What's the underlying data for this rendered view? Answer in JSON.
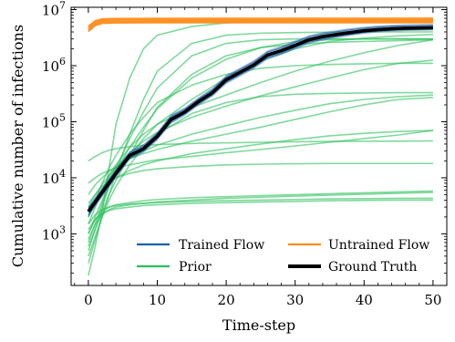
{
  "chart_data": {
    "type": "line",
    "xlabel": "Time-step",
    "ylabel": "Cumulative number of infections",
    "x_scale": "linear",
    "y_scale": "log",
    "xlim": [
      -2.5,
      52
    ],
    "ylim": [
      120,
      11000000
    ],
    "xticks": [
      {
        "value": 0,
        "label": "0"
      },
      {
        "value": 10,
        "label": "10"
      },
      {
        "value": 20,
        "label": "20"
      },
      {
        "value": 30,
        "label": "30"
      },
      {
        "value": 40,
        "label": "40"
      },
      {
        "value": 50,
        "label": "50"
      }
    ],
    "yticks": [
      {
        "value": 1000,
        "base": "10",
        "exp": "3"
      },
      {
        "value": 10000,
        "base": "10",
        "exp": "4"
      },
      {
        "value": 100000,
        "base": "10",
        "exp": "5"
      },
      {
        "value": 1000000,
        "base": "10",
        "exp": "6"
      },
      {
        "value": 10000000,
        "base": "10",
        "exp": "7"
      }
    ],
    "grid": false,
    "legend_position": "lower-right",
    "legend": [
      {
        "label": "Trained Flow",
        "color": "#1f5fa8"
      },
      {
        "label": "Untrained Flow",
        "color": "#ff8c1a"
      },
      {
        "label": "Prior",
        "color": "#2cbf5c"
      },
      {
        "label": "Ground Truth",
        "color": "#000000"
      }
    ],
    "ground_truth": {
      "x": [
        0,
        2,
        4,
        6,
        8,
        10,
        12,
        14,
        16,
        18,
        20,
        22,
        24,
        26,
        28,
        30,
        32,
        34,
        36,
        38,
        40,
        42,
        44,
        46,
        48,
        50
      ],
      "y": [
        2500,
        5500,
        12000,
        25000,
        33000,
        55000,
        110000,
        150000,
        230000,
        330000,
        560000,
        760000,
        1030000,
        1550000,
        1850000,
        2300000,
        2900000,
        3300000,
        3600000,
        3900000,
        4200000,
        4400000,
        4550000,
        4650000,
        4700000,
        4750000
      ]
    },
    "trained_flow": {
      "x": [
        0,
        2,
        4,
        6,
        8,
        10,
        12,
        14,
        16,
        18,
        20,
        22,
        24,
        26,
        28,
        30,
        32,
        34,
        36,
        38,
        40,
        42,
        44,
        46,
        48,
        50
      ],
      "lower": [
        2000,
        4500,
        10000,
        21000,
        28000,
        46000,
        92000,
        128000,
        195000,
        280000,
        470000,
        640000,
        870000,
        1300000,
        1550000,
        1950000,
        2450000,
        2800000,
        3100000,
        3400000,
        3700000,
        3900000,
        4050000,
        4150000,
        4200000,
        4250000
      ],
      "upper": [
        3100,
        6700,
        14500,
        30000,
        40000,
        66000,
        135000,
        180000,
        275000,
        400000,
        680000,
        920000,
        1250000,
        1880000,
        2250000,
        2800000,
        3500000,
        3950000,
        4300000,
        4650000,
        4950000,
        5200000,
        5350000,
        5450000,
        5500000,
        5550000
      ],
      "color": "#1f5fa8"
    },
    "untrained_flow": {
      "band_lower": [
        3900000,
        5000000,
        5500000,
        5600000,
        5650000,
        5650000
      ],
      "band_upper": [
        5200000,
        6500000,
        7000000,
        7100000,
        7150000,
        7200000
      ],
      "x": [
        0,
        1,
        2,
        4,
        10,
        50
      ],
      "color": "#ff8c1a"
    },
    "prior": {
      "x": [
        0,
        1,
        2,
        3,
        4,
        6,
        8,
        10,
        15,
        20,
        25,
        30,
        35,
        40,
        45,
        50
      ],
      "color": "#2cbf5c",
      "series": [
        [
          180,
          600,
          2500,
          15000,
          90000,
          600000,
          2000000,
          3500000,
          5000000,
          5800000,
          6100000,
          6300000,
          6400000,
          6400000,
          6500000,
          6500000
        ],
        [
          300,
          800,
          2000,
          5000,
          12000,
          60000,
          250000,
          800000,
          2500000,
          3500000,
          3800000,
          3900000,
          3950000,
          4000000,
          4000000,
          4000000
        ],
        [
          500,
          1200,
          3000,
          7000,
          15000,
          50000,
          150000,
          400000,
          1500000,
          2500000,
          2900000,
          3000000,
          3000000,
          3000000,
          3000000,
          3000000
        ],
        [
          700,
          1500,
          3500,
          7000,
          13000,
          35000,
          80000,
          170000,
          600000,
          1300000,
          2100000,
          2700000,
          2900000,
          3000000,
          3000000,
          3000000
        ],
        [
          1000,
          2000,
          4000,
          7000,
          11000,
          25000,
          50000,
          90000,
          250000,
          600000,
          1200000,
          2000000,
          2700000,
          3100000,
          3400000,
          3600000
        ],
        [
          1500,
          3000,
          6000,
          11000,
          17000,
          35000,
          60000,
          90000,
          180000,
          300000,
          500000,
          800000,
          1200000,
          1700000,
          2300000,
          2900000
        ],
        [
          2000,
          3500,
          6000,
          10000,
          15000,
          28000,
          45000,
          65000,
          120000,
          190000,
          290000,
          420000,
          600000,
          850000,
          1100000,
          1250000
        ],
        [
          3000,
          5000,
          7500,
          11000,
          15000,
          22000,
          30000,
          38000,
          60000,
          85000,
          120000,
          160000,
          210000,
          250000,
          280000,
          300000
        ],
        [
          5000,
          7500,
          10000,
          13000,
          16000,
          22000,
          27000,
          32000,
          45000,
          60000,
          80000,
          110000,
          150000,
          200000,
          250000,
          270000
        ],
        [
          2600,
          4000,
          6000,
          8000,
          10000,
          13500,
          17000,
          20000,
          27000,
          33000,
          40000,
          48000,
          56000,
          62000,
          67000,
          70000
        ],
        [
          8000,
          10000,
          12000,
          13500,
          15000,
          17000,
          19000,
          21000,
          24000,
          28000,
          32000,
          37000,
          43000,
          50000,
          58000,
          70000
        ],
        [
          20000,
          24000,
          28000,
          31000,
          33000,
          36000,
          38000,
          39000,
          41000,
          42000,
          43000,
          44000,
          44500,
          45000,
          45000,
          45500
        ],
        [
          3500,
          5000,
          7000,
          8500,
          10000,
          12000,
          13500,
          14500,
          16000,
          17000,
          17500,
          17800,
          18000,
          18000,
          18000,
          18000
        ],
        [
          1500,
          2200,
          2700,
          3000,
          3200,
          3400,
          3500,
          3600,
          3800,
          3900,
          4000,
          4100,
          4200,
          4250,
          4300,
          4300
        ],
        [
          1200,
          1800,
          2300,
          2600,
          2800,
          3000,
          3200,
          3300,
          3500,
          3600,
          3700,
          3800,
          3900,
          3950,
          4000,
          4000
        ],
        [
          800,
          1500,
          2200,
          2700,
          3000,
          3300,
          3500,
          3700,
          4000,
          4300,
          4500,
          4700,
          4900,
          5100,
          5300,
          5500
        ],
        [
          1000,
          1800,
          2500,
          3000,
          3300,
          3600,
          3900,
          4100,
          4400,
          4600,
          4800,
          5000,
          5200,
          5400,
          5600,
          5800
        ],
        [
          600,
          1200,
          2500,
          5000,
          9000,
          25000,
          70000,
          180000,
          700000,
          1500000,
          2100000,
          2400000,
          2600000,
          2700000,
          2800000,
          2900000
        ],
        [
          2000,
          4000,
          8000,
          15000,
          25000,
          60000,
          120000,
          220000,
          450000,
          700000,
          900000,
          1000000,
          1050000,
          1080000,
          1100000,
          1100000
        ],
        [
          400,
          900,
          2000,
          4000,
          7000,
          17000,
          35000,
          60000,
          140000,
          220000,
          280000,
          310000,
          320000,
          325000,
          330000,
          330000
        ]
      ]
    }
  }
}
